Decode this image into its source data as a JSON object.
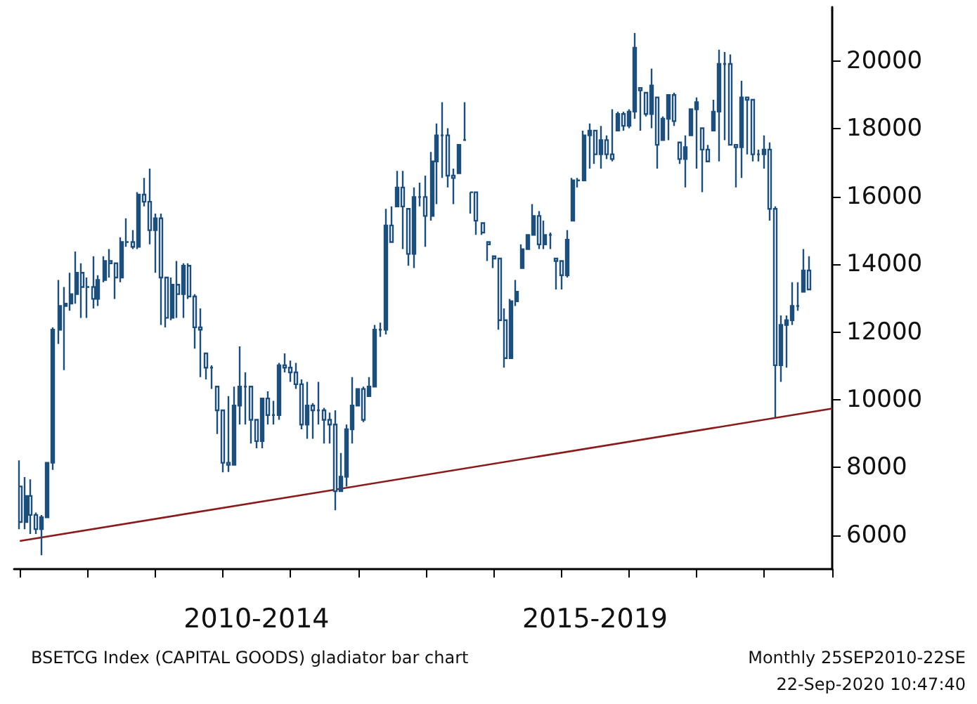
{
  "chart_data": {
    "type": "candlestick",
    "x": [
      "2009-01",
      "2009-02",
      "2009-03",
      "2009-04",
      "2009-05",
      "2009-06",
      "2009-07",
      "2009-08",
      "2009-09",
      "2009-10",
      "2009-11",
      "2009-12",
      "2010-01",
      "2010-02",
      "2010-03",
      "2010-04",
      "2010-05",
      "2010-06",
      "2010-07",
      "2010-08",
      "2010-09",
      "2010-10",
      "2010-11",
      "2010-12",
      "2011-01",
      "2011-02",
      "2011-03",
      "2011-04",
      "2011-05",
      "2011-06",
      "2011-07",
      "2011-08",
      "2011-09",
      "2011-10",
      "2011-11",
      "2011-12",
      "2012-01",
      "2012-02",
      "2012-03",
      "2012-04",
      "2012-05",
      "2012-06",
      "2012-07",
      "2012-08",
      "2012-09",
      "2012-10",
      "2012-11",
      "2012-12",
      "2013-01",
      "2013-02",
      "2013-03",
      "2013-04",
      "2013-05",
      "2013-06",
      "2013-07",
      "2013-08",
      "2013-09",
      "2013-10",
      "2013-11",
      "2013-12",
      "2014-01",
      "2014-02",
      "2014-03",
      "2014-04",
      "2014-05",
      "2014-06",
      "2014-07",
      "2014-08",
      "2014-09",
      "2014-10",
      "2014-11",
      "2014-12",
      "2015-01",
      "2015-02",
      "2015-03",
      "2015-04",
      "2015-05",
      "2015-06",
      "2015-07",
      "2015-08",
      "2015-09",
      "2015-10",
      "2015-11",
      "2015-12",
      "2016-01",
      "2016-02",
      "2016-03",
      "2016-04",
      "2016-05",
      "2016-06",
      "2016-07",
      "2016-08",
      "2016-09",
      "2016-10",
      "2016-11",
      "2016-12",
      "2017-01",
      "2017-02",
      "2017-03",
      "2017-04",
      "2017-05",
      "2017-06",
      "2017-07",
      "2017-08",
      "2017-09",
      "2017-10",
      "2017-11",
      "2017-12",
      "2018-01",
      "2018-02",
      "2018-03",
      "2018-04",
      "2018-05",
      "2018-06",
      "2018-07",
      "2018-08",
      "2018-09",
      "2018-10",
      "2018-11",
      "2018-12",
      "2019-01",
      "2019-02",
      "2019-03",
      "2019-04",
      "2019-05",
      "2019-06",
      "2019-07",
      "2019-08",
      "2019-09",
      "2019-10",
      "2019-11",
      "2019-12",
      "2020-01",
      "2020-02",
      "2020-03",
      "2020-04",
      "2020-05",
      "2020-06",
      "2020-07",
      "2020-08",
      "2020-09"
    ],
    "ohlc": [
      [
        7440,
        8210,
        6180,
        6390
      ],
      [
        6390,
        7720,
        6180,
        7160
      ],
      [
        7160,
        7650,
        6040,
        6600
      ],
      [
        6600,
        6670,
        6040,
        6180
      ],
      [
        6180,
        6600,
        5410,
        6530
      ],
      [
        6530,
        8140,
        6530,
        8140
      ],
      [
        8140,
        12140,
        7930,
        12070
      ],
      [
        12070,
        13540,
        11650,
        12770
      ],
      [
        12770,
        13330,
        10880,
        12840
      ],
      [
        12840,
        13750,
        12630,
        13120
      ],
      [
        13120,
        14380,
        12840,
        13750
      ],
      [
        13750,
        14030,
        12420,
        13330
      ],
      [
        13330,
        13610,
        12420,
        13330
      ],
      [
        13330,
        14240,
        12700,
        12980
      ],
      [
        12980,
        13680,
        12770,
        13540
      ],
      [
        13540,
        14240,
        13470,
        14100
      ],
      [
        14100,
        14450,
        13610,
        14030
      ],
      [
        14030,
        14030,
        12980,
        13610
      ],
      [
        13610,
        14800,
        13470,
        14660
      ],
      [
        14660,
        15360,
        14520,
        14660
      ],
      [
        14660,
        15010,
        14450,
        14520
      ],
      [
        14520,
        16130,
        14450,
        16060
      ],
      [
        16060,
        16550,
        15710,
        15850
      ],
      [
        15850,
        16830,
        14590,
        15010
      ],
      [
        15010,
        15500,
        13750,
        15360
      ],
      [
        15360,
        15500,
        12210,
        13610
      ],
      [
        13610,
        13610,
        12140,
        12420
      ],
      [
        12420,
        13610,
        12350,
        13400
      ],
      [
        13400,
        14100,
        12420,
        13120
      ],
      [
        13120,
        14030,
        12420,
        13960
      ],
      [
        13960,
        14030,
        12980,
        13050
      ],
      [
        13050,
        13120,
        11510,
        12140
      ],
      [
        12140,
        12700,
        10670,
        12070
      ],
      [
        11370,
        11370,
        10600,
        10950
      ],
      [
        10950,
        11020,
        10320,
        10950
      ],
      [
        10390,
        10390,
        8990,
        9690
      ],
      [
        9690,
        9690,
        7860,
        8140
      ],
      [
        8140,
        10110,
        7870,
        8080
      ],
      [
        8080,
        10390,
        8080,
        9830
      ],
      [
        9830,
        11580,
        9270,
        10390
      ],
      [
        10390,
        10810,
        9270,
        10390
      ],
      [
        10390,
        10390,
        8710,
        9410
      ],
      [
        9410,
        9410,
        8570,
        8780
      ],
      [
        8780,
        10040,
        8570,
        10040
      ],
      [
        10040,
        10250,
        9270,
        9550
      ],
      [
        9550,
        9970,
        9270,
        9550
      ],
      [
        9550,
        11090,
        9410,
        11020
      ],
      [
        11020,
        11370,
        10810,
        10950
      ],
      [
        10950,
        11160,
        10530,
        10810
      ],
      [
        10810,
        11090,
        10320,
        10460
      ],
      [
        10460,
        10600,
        9130,
        9270
      ],
      [
        9270,
        10530,
        8850,
        9830
      ],
      [
        9830,
        9900,
        8850,
        9690
      ],
      [
        9690,
        10530,
        9270,
        9690
      ],
      [
        9690,
        9760,
        8710,
        9410
      ],
      [
        9410,
        9620,
        8710,
        9270
      ],
      [
        9270,
        9690,
        6740,
        7300
      ],
      [
        7300,
        8430,
        7300,
        7730
      ],
      [
        7730,
        9270,
        7440,
        9130
      ],
      [
        9130,
        10670,
        8710,
        9830
      ],
      [
        9830,
        10320,
        9830,
        10320
      ],
      [
        10320,
        10390,
        9340,
        9410
      ],
      [
        10110,
        10670,
        10110,
        10390
      ],
      [
        10390,
        12210,
        10390,
        12070
      ],
      [
        12070,
        12280,
        11860,
        12070
      ],
      [
        12070,
        15640,
        11930,
        15150
      ],
      [
        15150,
        15710,
        14660,
        14660
      ],
      [
        15710,
        16760,
        15710,
        16270
      ],
      [
        16270,
        16760,
        14450,
        15710
      ],
      [
        15640,
        15640,
        13960,
        14310
      ],
      [
        14310,
        16270,
        13890,
        15990
      ],
      [
        15990,
        16410,
        15710,
        15990
      ],
      [
        15990,
        16620,
        14520,
        15430
      ],
      [
        15430,
        17320,
        15290,
        17040
      ],
      [
        17040,
        18160,
        15780,
        17810
      ],
      [
        17810,
        18790,
        16550,
        17810
      ],
      [
        17810,
        18020,
        16270,
        16620
      ],
      [
        16620,
        16830,
        15780,
        16550
      ],
      [
        16690,
        17530,
        16690,
        17530
      ],
      [
        17670,
        18790,
        17670,
        17670
      ],
      [
        16130,
        16130,
        15500,
        16130
      ],
      [
        16130,
        16130,
        14870,
        15290
      ],
      [
        15220,
        15220,
        14870,
        14940
      ],
      [
        14660,
        14660,
        14100,
        14590
      ],
      [
        14240,
        14240,
        13890,
        14170
      ],
      [
        14170,
        14170,
        12070,
        12350
      ],
      [
        12350,
        12700,
        10950,
        11230
      ],
      [
        11230,
        12980,
        11230,
        12910
      ],
      [
        12910,
        13540,
        12770,
        13190
      ],
      [
        13890,
        14590,
        13890,
        14450
      ],
      [
        14450,
        14870,
        14450,
        14870
      ],
      [
        14870,
        15780,
        14870,
        15430
      ],
      [
        15430,
        15570,
        14450,
        14590
      ],
      [
        14590,
        15290,
        14450,
        14870
      ],
      [
        14870,
        14940,
        14450,
        14870
      ],
      [
        14170,
        14170,
        13260,
        14100
      ],
      [
        14100,
        14100,
        13260,
        13680
      ],
      [
        13680,
        15010,
        13610,
        14730
      ],
      [
        15290,
        16550,
        15290,
        16480
      ],
      [
        16480,
        16550,
        16270,
        16480
      ],
      [
        16480,
        17950,
        16480,
        17810
      ],
      [
        17810,
        18160,
        16830,
        17950
      ],
      [
        17950,
        17950,
        16970,
        17250
      ],
      [
        17250,
        18090,
        16830,
        17670
      ],
      [
        17670,
        17810,
        17110,
        17250
      ],
      [
        17250,
        18580,
        17040,
        17110
      ],
      [
        17950,
        18510,
        17950,
        18440
      ],
      [
        18440,
        18510,
        17950,
        18090
      ],
      [
        18090,
        18580,
        18020,
        18510
      ],
      [
        18510,
        20830,
        18300,
        20400
      ],
      [
        19210,
        19210,
        17950,
        19140
      ],
      [
        19070,
        19070,
        18370,
        18440
      ],
      [
        18440,
        19780,
        18020,
        19280
      ],
      [
        18930,
        18930,
        16830,
        17530
      ],
      [
        17670,
        18370,
        17670,
        18300
      ],
      [
        18300,
        19000,
        17670,
        19000
      ],
      [
        19000,
        19070,
        18090,
        18230
      ],
      [
        17600,
        17600,
        16970,
        17110
      ],
      [
        17110,
        17810,
        16270,
        17460
      ],
      [
        17810,
        18580,
        17810,
        18580
      ],
      [
        18580,
        18930,
        16830,
        18790
      ],
      [
        18020,
        18020,
        16130,
        17390
      ],
      [
        17390,
        17530,
        17040,
        17040
      ],
      [
        17950,
        18860,
        17950,
        18510
      ],
      [
        18510,
        20340,
        17040,
        19920
      ],
      [
        19920,
        20270,
        17670,
        19920
      ],
      [
        19920,
        20200,
        17530,
        17530
      ],
      [
        17530,
        17530,
        16270,
        17460
      ],
      [
        17460,
        19420,
        16550,
        18930
      ],
      [
        18930,
        18930,
        17250,
        18860
      ],
      [
        18860,
        18860,
        17040,
        17250
      ],
      [
        17250,
        17390,
        17040,
        17250
      ],
      [
        17250,
        17810,
        16830,
        17390
      ],
      [
        17390,
        17600,
        15290,
        15640
      ],
      [
        15640,
        15710,
        9480,
        11020
      ],
      [
        11020,
        12490,
        10530,
        12210
      ],
      [
        12210,
        12490,
        10950,
        12350
      ],
      [
        12350,
        13470,
        12210,
        12770
      ],
      [
        12770,
        13470,
        12630,
        12770
      ],
      [
        13190,
        14450,
        13190,
        13820
      ],
      [
        13820,
        14240,
        13260,
        13260
      ]
    ],
    "color": "#1c4f7c",
    "series": [
      {
        "type": "line",
        "color": "#8b1a1a",
        "x": [
          "2009-01",
          "2021-01"
        ],
        "values": [
          5830,
          9740
        ]
      }
    ],
    "xlim": [
      "2008-12",
      "2021-01"
    ],
    "xticks": [
      {
        "value": "2009-01",
        "label": null
      },
      {
        "value": "2010-01",
        "label": null
      },
      {
        "value": "2011-01",
        "label": null
      },
      {
        "value": "2012-01",
        "label": null
      },
      {
        "value": "2013-01",
        "label": null
      },
      {
        "value": "2014-01",
        "label": null
      },
      {
        "value": "2015-01",
        "label": null
      },
      {
        "value": "2016-01",
        "label": null
      },
      {
        "value": "2017-01",
        "label": null
      },
      {
        "value": "2018-01",
        "label": null
      },
      {
        "value": "2019-01",
        "label": null
      },
      {
        "value": "2020-01",
        "label": null
      },
      {
        "value": "2021-01",
        "label": null
      },
      {
        "value": "2012-07",
        "label": "2010-2014"
      },
      {
        "value": "2017-07",
        "label": "2015-2019"
      }
    ],
    "ylim": [
      5000,
      21600
    ],
    "yticks": [
      6000,
      8000,
      10000,
      12000,
      14000,
      16000,
      18000,
      20000
    ],
    "grid": false,
    "annotations": [
      "BSETCG Index (CAPITAL GOODS) gladiator bar chart",
      "Monthly 25SEP2010-22SE",
      "22-Sep-2020 10:47:40"
    ]
  }
}
